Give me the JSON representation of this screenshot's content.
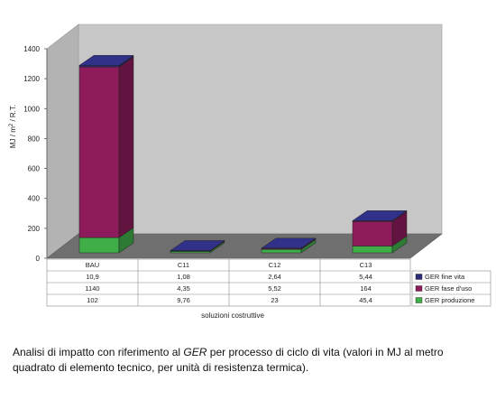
{
  "chart_data": {
    "type": "bar",
    "stacked": true,
    "three_d": true,
    "categories": [
      "BAU",
      "C11",
      "C12",
      "C13"
    ],
    "ylabel_main": "MJ / m",
    "ylabel_sup": "2",
    "ylabel_rest": " / R.T.",
    "xlabel": "soluzioni costruttive",
    "ylim": [
      0,
      1400
    ],
    "yticks": [
      0,
      200,
      400,
      600,
      800,
      1000,
      1200,
      1400
    ],
    "grid": false,
    "legend": "table-right",
    "series": [
      {
        "name": "GER fine vita",
        "color": "#2b2b78",
        "values": [
          10.9,
          1.08,
          2.64,
          5.44
        ],
        "labels": [
          "10,9",
          "1,08",
          "2,64",
          "5,44"
        ]
      },
      {
        "name": "GER fase d'uso",
        "color": "#8e1b5c",
        "values": [
          1140,
          4.35,
          5.52,
          164
        ],
        "labels": [
          "1140",
          "4,35",
          "5,52",
          "164"
        ]
      },
      {
        "name": "GER produzione",
        "color": "#3fae49",
        "values": [
          102,
          9.76,
          23,
          45.4
        ],
        "labels": [
          "102",
          "9,76",
          "23",
          "45,4"
        ]
      }
    ]
  },
  "caption": {
    "before": "Analisi di impatto con riferimento al ",
    "em": "GER",
    "after": " per processo di ciclo di vita (valori in MJ al metro quadrato di elemento tecnico, per unità di resistenza termica)."
  }
}
